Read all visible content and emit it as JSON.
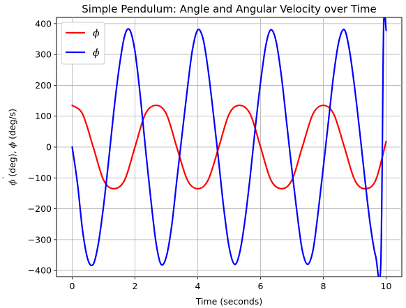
{
  "chart_data": {
    "type": "line",
    "title": "Simple Pendulum: Angle and Angular Velocity over Time",
    "xlabel": "Time (seconds)",
    "ylabel_parts": [
      "ϕ",
      " (deg), ",
      "ϕ",
      " (deg/s)"
    ],
    "xlim": [
      -0.5,
      10.5
    ],
    "ylim": [
      -420,
      420
    ],
    "xticks": [
      0,
      2,
      4,
      6,
      8,
      10
    ],
    "yticks": [
      -400,
      -300,
      -200,
      -100,
      0,
      100,
      200,
      300,
      400
    ],
    "grid": true,
    "legend_position": "upper-left",
    "series": [
      {
        "name": "ϕ",
        "color": "#ff0000",
        "x": [
          0,
          0.33,
          0.67,
          1.0,
          1.33,
          1.67,
          2.0,
          2.33,
          2.67,
          3.0,
          3.33,
          3.67,
          4.0,
          4.33,
          4.67,
          5.0,
          5.33,
          5.67,
          6.0,
          6.33,
          6.67,
          7.0,
          7.33,
          7.67,
          8.0,
          8.33,
          8.67,
          9.0,
          9.33,
          9.67,
          10.0
        ],
        "y": [
          135,
          107,
          0,
          -107,
          -135,
          -107,
          0,
          107,
          135,
          107,
          0,
          -107,
          -135,
          -107,
          0,
          107,
          135,
          107,
          0,
          -107,
          -135,
          -107,
          0,
          107,
          135,
          107,
          0,
          -107,
          -135,
          -107,
          18
        ]
      },
      {
        "name": "ϕ̇",
        "color": "#0000ff",
        "x": [
          0,
          0.17,
          0.33,
          0.5,
          0.67,
          0.83,
          1.0,
          1.17,
          1.33,
          1.5,
          1.67,
          1.83,
          2.0,
          2.17,
          2.33,
          2.5,
          2.67,
          2.83,
          3.0,
          3.17,
          3.33,
          3.5,
          3.67,
          3.83,
          4.0,
          4.17,
          4.33,
          4.5,
          4.67,
          4.83,
          5.0,
          5.17,
          5.33,
          5.5,
          5.67,
          5.83,
          6.0,
          6.17,
          6.33,
          6.5,
          6.67,
          6.83,
          7.0,
          7.17,
          7.33,
          7.5,
          7.67,
          7.83,
          8.0,
          8.17,
          8.33,
          8.5,
          8.67,
          8.83,
          9.0,
          9.17,
          9.33,
          9.5,
          9.67,
          9.83,
          9.92,
          10.0
        ],
        "y": [
          0,
          -120,
          -270,
          -365,
          -380,
          -315,
          -190,
          -35,
          120,
          260,
          360,
          380,
          310,
          165,
          0,
          -165,
          -310,
          -380,
          -355,
          -255,
          -110,
          40,
          190,
          315,
          380,
          350,
          250,
          105,
          -50,
          -200,
          -325,
          -380,
          -345,
          -240,
          -95,
          60,
          210,
          330,
          380,
          340,
          225,
          80,
          -75,
          -220,
          -335,
          -380,
          -335,
          -215,
          -65,
          90,
          235,
          345,
          380,
          315,
          190,
          40,
          -110,
          -255,
          -355,
          -380,
          385,
          378
        ]
      }
    ]
  }
}
